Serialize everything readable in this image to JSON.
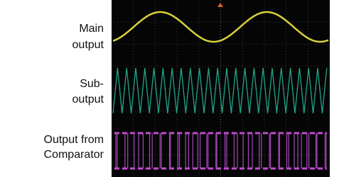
{
  "labels": [
    [
      "Main",
      "output"
    ],
    [
      "Sub-",
      "output"
    ],
    [
      "Output from",
      "Comparator"
    ]
  ]
}
